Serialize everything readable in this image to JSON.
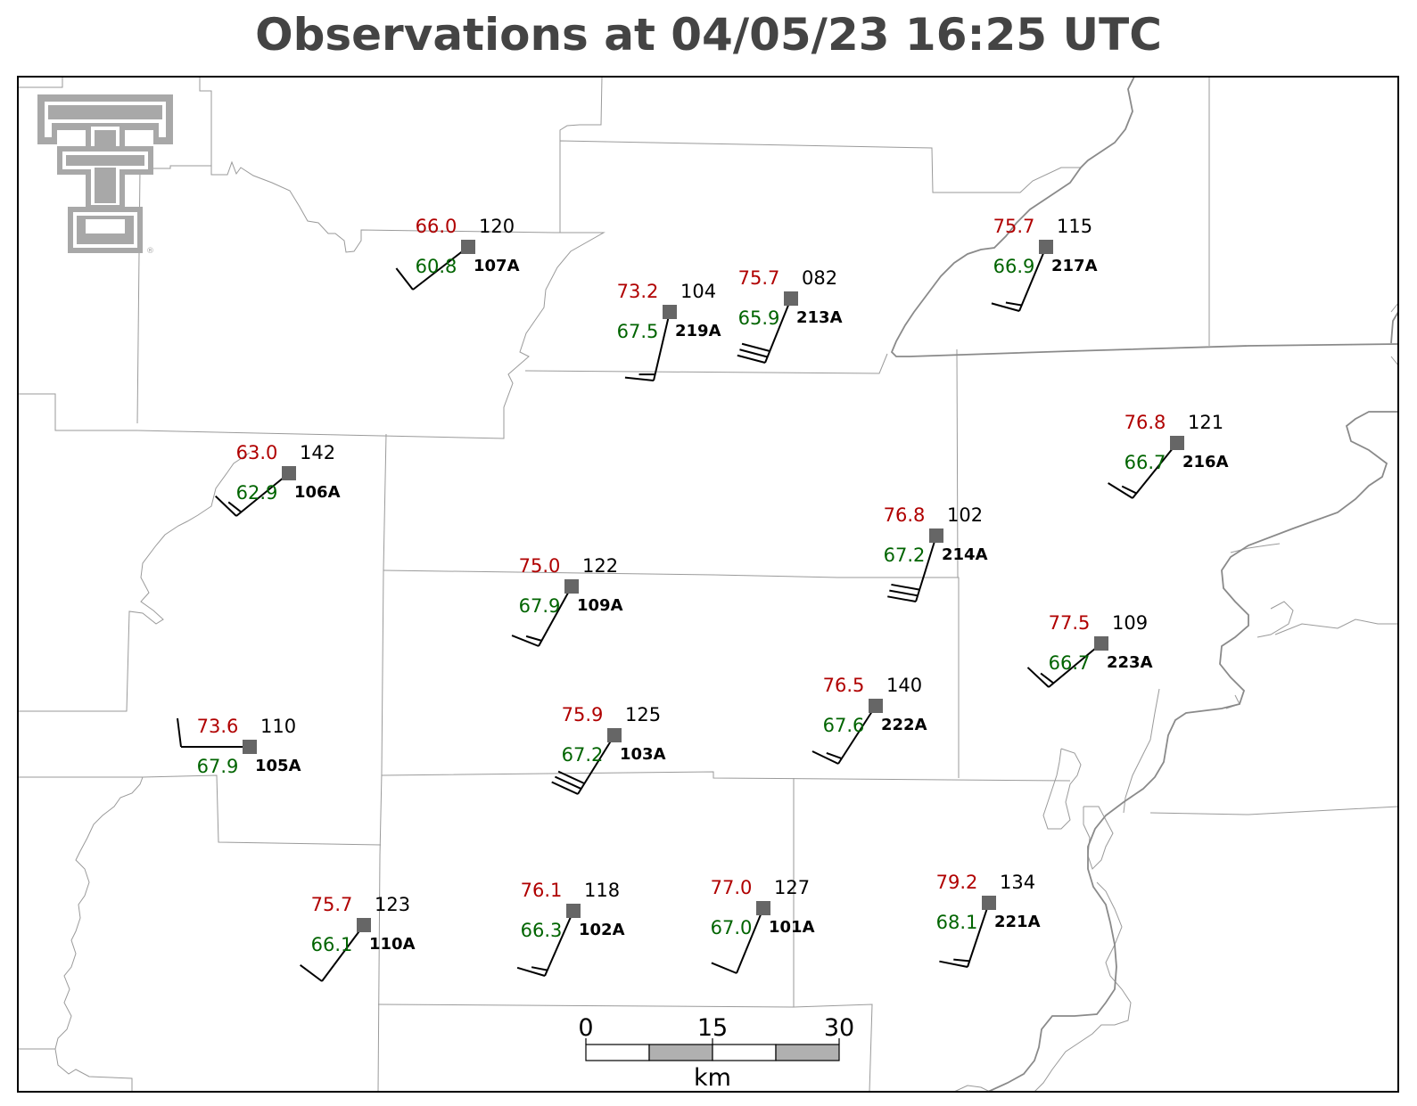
{
  "title": "Observations at 04/05/23 16:25 UTC",
  "colors": {
    "temperature": "#b00000",
    "dewpoint": "#006400",
    "station_marker": "#666666",
    "logo": "#a8a8a8",
    "county_lines": "#999999",
    "state_lines": "#888888"
  },
  "icons": {
    "logo": "texas-tech-double-t-logo",
    "station": "square-marker",
    "wind": "wind-barb"
  },
  "logo": {
    "registered_mark": "®"
  },
  "scale_bar": {
    "labels": [
      "0",
      "15",
      "30"
    ],
    "unit": "km"
  },
  "stations": [
    {
      "id": "107A",
      "temp": "66.0",
      "dewpoint": "60.8",
      "pressure": "120"
    },
    {
      "id": "219A",
      "temp": "73.2",
      "dewpoint": "67.5",
      "pressure": "104"
    },
    {
      "id": "213A",
      "temp": "75.7",
      "dewpoint": "65.9",
      "pressure": "082"
    },
    {
      "id": "217A",
      "temp": "75.7",
      "dewpoint": "66.9",
      "pressure": "115"
    },
    {
      "id": "106A",
      "temp": "63.0",
      "dewpoint": "62.9",
      "pressure": "142"
    },
    {
      "id": "216A",
      "temp": "76.8",
      "dewpoint": "66.7",
      "pressure": "121"
    },
    {
      "id": "214A",
      "temp": "76.8",
      "dewpoint": "67.2",
      "pressure": "102"
    },
    {
      "id": "109A",
      "temp": "75.0",
      "dewpoint": "67.9",
      "pressure": "122"
    },
    {
      "id": "223A",
      "temp": "77.5",
      "dewpoint": "66.7",
      "pressure": "109"
    },
    {
      "id": "222A",
      "temp": "76.5",
      "dewpoint": "67.6",
      "pressure": "140"
    },
    {
      "id": "105A",
      "temp": "73.6",
      "dewpoint": "67.9",
      "pressure": "110"
    },
    {
      "id": "103A",
      "temp": "75.9",
      "dewpoint": "67.2",
      "pressure": "125"
    },
    {
      "id": "221A",
      "temp": "79.2",
      "dewpoint": "68.1",
      "pressure": "134"
    },
    {
      "id": "110A",
      "temp": "75.7",
      "dewpoint": "66.1",
      "pressure": "123"
    },
    {
      "id": "102A",
      "temp": "76.1",
      "dewpoint": "66.3",
      "pressure": "118"
    },
    {
      "id": "101A",
      "temp": "77.0",
      "dewpoint": "67.0",
      "pressure": "127"
    }
  ]
}
